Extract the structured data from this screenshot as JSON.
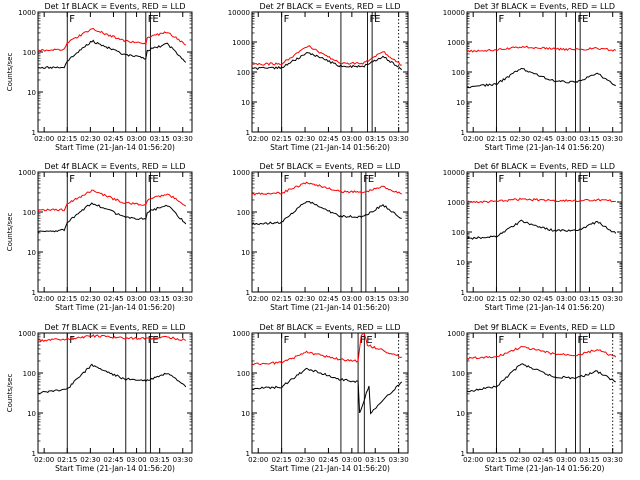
{
  "chart_data": [
    {
      "type": "line",
      "title": "Det 1f BLACK = Events, RED = LLD",
      "xlabel": "Start Time (21-Jan-14 01:56:20)",
      "ylabel": "Counts/sec",
      "yscale": "log",
      "ylim": [
        1,
        1000
      ],
      "x_ticks": [
        "02:00",
        "02:15",
        "02:30",
        "02:45",
        "03:00",
        "03:15",
        "03:30"
      ],
      "y_ticks": [
        "1",
        "10",
        "100",
        "1000"
      ],
      "markers": [
        {
          "time": "02:15",
          "label": "F",
          "style": "solid"
        },
        {
          "time": "02:53",
          "label": "",
          "style": "solid"
        },
        {
          "time": "03:06",
          "label": "F",
          "style": "solid"
        },
        {
          "time": "03:09",
          "label": "E",
          "style": "solid"
        }
      ],
      "series": [
        {
          "name": "Events",
          "color": "#000000",
          "x": [
            "01:56",
            "02:13",
            "02:15",
            "02:31",
            "02:52",
            "03:06",
            "03:07",
            "03:20",
            "03:32"
          ],
          "y": [
            40,
            42,
            60,
            190,
            85,
            70,
            110,
            160,
            55
          ]
        },
        {
          "name": "LLD",
          "color": "#ff0000",
          "x": [
            "01:56",
            "02:13",
            "02:15",
            "02:31",
            "02:52",
            "03:06",
            "03:07",
            "03:20",
            "03:32"
          ],
          "y": [
            110,
            115,
            170,
            380,
            190,
            160,
            230,
            320,
            150
          ]
        }
      ]
    },
    {
      "type": "line",
      "title": "Det 2f BLACK = Events, RED = LLD",
      "xlabel": "Start Time (21-Jan-14 01:56:20)",
      "ylabel": "",
      "yscale": "log",
      "ylim": [
        1,
        10000
      ],
      "x_ticks": [
        "02:00",
        "02:15",
        "02:30",
        "02:45",
        "03:00",
        "03:15",
        "03:30"
      ],
      "y_ticks": [
        "1",
        "10",
        "100",
        "1000",
        "10000"
      ],
      "markers": [
        {
          "time": "02:15",
          "label": "F",
          "style": "solid"
        },
        {
          "time": "02:53",
          "label": "",
          "style": "solid"
        },
        {
          "time": "03:10",
          "label": "F",
          "style": "solid"
        },
        {
          "time": "03:13",
          "label": "E",
          "style": "solid"
        },
        {
          "time": "03:30",
          "label": "",
          "style": "dotted"
        }
      ],
      "series": [
        {
          "name": "Events",
          "color": "#000000",
          "x": [
            "01:56",
            "02:15",
            "02:32",
            "02:52",
            "03:07",
            "03:20",
            "03:32"
          ],
          "y": [
            130,
            140,
            450,
            160,
            150,
            330,
            120
          ]
        },
        {
          "name": "LLD",
          "color": "#ff0000",
          "x": [
            "01:56",
            "02:15",
            "02:32",
            "02:52",
            "03:07",
            "03:20",
            "03:32"
          ],
          "y": [
            180,
            190,
            750,
            200,
            190,
            480,
            170
          ]
        }
      ]
    },
    {
      "type": "line",
      "title": "Det 3f BLACK = Events, RED = LLD",
      "xlabel": "Start Time (21-Jan-14 01:56:20)",
      "ylabel": "",
      "yscale": "log",
      "ylim": [
        1,
        10000
      ],
      "x_ticks": [
        "02:00",
        "02:15",
        "02:30",
        "02:45",
        "03:00",
        "03:15",
        "03:30"
      ],
      "y_ticks": [
        "1",
        "10",
        "100",
        "1000",
        "10000"
      ],
      "markers": [
        {
          "time": "02:15",
          "label": "F",
          "style": "solid"
        },
        {
          "time": "02:53",
          "label": "",
          "style": "solid"
        },
        {
          "time": "03:06",
          "label": "F",
          "style": "solid"
        },
        {
          "time": "03:09",
          "label": "E",
          "style": "solid"
        }
      ],
      "series": [
        {
          "name": "Events",
          "color": "#000000",
          "x": [
            "01:56",
            "02:15",
            "02:31",
            "02:52",
            "03:07",
            "03:20",
            "03:32"
          ],
          "y": [
            30,
            40,
            130,
            50,
            45,
            90,
            35
          ]
        },
        {
          "name": "LLD",
          "color": "#ff0000",
          "x": [
            "01:56",
            "02:15",
            "02:31",
            "02:52",
            "03:07",
            "03:20",
            "03:32"
          ],
          "y": [
            500,
            540,
            700,
            600,
            550,
            620,
            520
          ]
        }
      ]
    },
    {
      "type": "line",
      "title": "Det 4f BLACK = Events, RED = LLD",
      "xlabel": "Start Time (21-Jan-14 01:56:20)",
      "ylabel": "Counts/sec",
      "yscale": "log",
      "ylim": [
        1,
        1000
      ],
      "x_ticks": [
        "02:00",
        "02:15",
        "02:30",
        "02:45",
        "03:00",
        "03:15",
        "03:30"
      ],
      "y_ticks": [
        "1",
        "10",
        "100",
        "1000"
      ],
      "markers": [
        {
          "time": "02:15",
          "label": "F",
          "style": "solid"
        },
        {
          "time": "02:53",
          "label": "",
          "style": "solid"
        },
        {
          "time": "03:06",
          "label": "F",
          "style": "solid"
        },
        {
          "time": "03:09",
          "label": "E",
          "style": "solid"
        }
      ],
      "series": [
        {
          "name": "Events",
          "color": "#000000",
          "x": [
            "01:56",
            "02:13",
            "02:15",
            "02:31",
            "02:52",
            "03:06",
            "03:07",
            "03:20",
            "03:32"
          ],
          "y": [
            32,
            35,
            55,
            170,
            75,
            65,
            100,
            150,
            50
          ]
        },
        {
          "name": "LLD",
          "color": "#ff0000",
          "x": [
            "01:56",
            "02:13",
            "02:15",
            "02:31",
            "02:52",
            "03:06",
            "03:07",
            "03:20",
            "03:32"
          ],
          "y": [
            110,
            115,
            160,
            340,
            170,
            150,
            200,
            290,
            140
          ]
        }
      ]
    },
    {
      "type": "line",
      "title": "Det 5f BLACK = Events, RED = LLD",
      "xlabel": "Start Time (21-Jan-14 01:56:20)",
      "ylabel": "",
      "yscale": "log",
      "ylim": [
        1,
        1000
      ],
      "x_ticks": [
        "02:00",
        "02:15",
        "02:30",
        "02:45",
        "03:00",
        "03:15",
        "03:30"
      ],
      "y_ticks": [
        "1",
        "10",
        "100",
        "1000"
      ],
      "markers": [
        {
          "time": "02:15",
          "label": "F",
          "style": "solid"
        },
        {
          "time": "02:53",
          "label": "",
          "style": "solid"
        },
        {
          "time": "03:06",
          "label": "F",
          "style": "solid"
        },
        {
          "time": "03:09",
          "label": "E",
          "style": "solid"
        }
      ],
      "series": [
        {
          "name": "Events",
          "color": "#000000",
          "x": [
            "01:56",
            "02:15",
            "02:31",
            "02:52",
            "03:07",
            "03:20",
            "03:32"
          ],
          "y": [
            50,
            55,
            190,
            80,
            75,
            150,
            70
          ]
        },
        {
          "name": "LLD",
          "color": "#ff0000",
          "x": [
            "01:56",
            "02:15",
            "02:31",
            "02:52",
            "03:07",
            "03:20",
            "03:32"
          ],
          "y": [
            280,
            300,
            550,
            330,
            310,
            440,
            280
          ]
        }
      ]
    },
    {
      "type": "line",
      "title": "Det 6f BLACK = Events, RED = LLD",
      "xlabel": "Start Time (21-Jan-14 01:56:20)",
      "ylabel": "",
      "yscale": "log",
      "ylim": [
        1,
        10000
      ],
      "x_ticks": [
        "02:00",
        "02:15",
        "02:30",
        "02:45",
        "03:00",
        "03:15",
        "03:30"
      ],
      "y_ticks": [
        "1",
        "10",
        "100",
        "1000",
        "10000"
      ],
      "markers": [
        {
          "time": "02:15",
          "label": "F",
          "style": "solid"
        },
        {
          "time": "02:53",
          "label": "",
          "style": "solid"
        },
        {
          "time": "03:06",
          "label": "F",
          "style": "solid"
        },
        {
          "time": "03:09",
          "label": "E",
          "style": "solid"
        }
      ],
      "series": [
        {
          "name": "Events",
          "color": "#000000",
          "x": [
            "01:56",
            "02:15",
            "02:31",
            "02:52",
            "03:07",
            "03:20",
            "03:32"
          ],
          "y": [
            60,
            70,
            230,
            110,
            110,
            220,
            90
          ]
        },
        {
          "name": "LLD",
          "color": "#ff0000",
          "x": [
            "01:56",
            "02:15",
            "02:31",
            "02:52",
            "03:07",
            "03:20",
            "03:32"
          ],
          "y": [
            1000,
            1050,
            1250,
            1100,
            1100,
            1200,
            1050
          ]
        }
      ]
    },
    {
      "type": "line",
      "title": "Det 7f BLACK = Events, RED = LLD",
      "xlabel": "Start Time (21-Jan-14 01:56:20)",
      "ylabel": "Counts/sec",
      "yscale": "log",
      "ylim": [
        1,
        1000
      ],
      "x_ticks": [
        "02:00",
        "02:15",
        "02:30",
        "02:45",
        "03:00",
        "03:15",
        "03:30"
      ],
      "y_ticks": [
        "1",
        "10",
        "100",
        "1000"
      ],
      "markers": [
        {
          "time": "02:15",
          "label": "F",
          "style": "solid"
        },
        {
          "time": "02:53",
          "label": "",
          "style": "solid"
        },
        {
          "time": "03:06",
          "label": "F",
          "style": "solid"
        },
        {
          "time": "03:09",
          "label": "E",
          "style": "solid"
        }
      ],
      "series": [
        {
          "name": "Events",
          "color": "#000000",
          "x": [
            "01:56",
            "02:15",
            "02:31",
            "02:52",
            "03:07",
            "03:20",
            "03:32"
          ],
          "y": [
            32,
            40,
            160,
            70,
            65,
            100,
            45
          ]
        },
        {
          "name": "LLD",
          "color": "#ff0000",
          "x": [
            "01:56",
            "02:15",
            "02:31",
            "02:52",
            "03:07",
            "03:20",
            "03:32"
          ],
          "y": [
            650,
            700,
            850,
            750,
            720,
            800,
            650
          ]
        }
      ]
    },
    {
      "type": "line",
      "title": "Det 8f BLACK = Events, RED = LLD",
      "xlabel": "Start Time (21-Jan-14 01:56:20)",
      "ylabel": "",
      "yscale": "log",
      "ylim": [
        1,
        1000
      ],
      "x_ticks": [
        "02:00",
        "02:15",
        "02:30",
        "02:45",
        "03:00",
        "03:15",
        "03:30"
      ],
      "y_ticks": [
        "1",
        "10",
        "100",
        "1000"
      ],
      "markers": [
        {
          "time": "02:15",
          "label": "F",
          "style": "solid"
        },
        {
          "time": "02:53",
          "label": "",
          "style": "solid"
        },
        {
          "time": "03:04",
          "label": "F",
          "style": "solid"
        },
        {
          "time": "03:08",
          "label": "E",
          "style": "solid"
        },
        {
          "time": "03:30",
          "label": "",
          "style": "dotted"
        }
      ],
      "series": [
        {
          "name": "Events",
          "color": "#000000",
          "x": [
            "01:56",
            "02:15",
            "02:31",
            "02:52",
            "03:04",
            "03:05",
            "03:11",
            "03:12",
            "03:32"
          ],
          "y": [
            40,
            45,
            130,
            70,
            60,
            10,
            50,
            10,
            60
          ]
        },
        {
          "name": "LLD",
          "color": "#ff0000",
          "x": [
            "01:56",
            "02:15",
            "02:31",
            "02:52",
            "03:04",
            "03:06",
            "03:08",
            "03:10",
            "03:32"
          ],
          "y": [
            170,
            180,
            330,
            220,
            200,
            900,
            950,
            500,
            250
          ]
        }
      ]
    },
    {
      "type": "line",
      "title": "Det 9f BLACK = Events, RED = LLD",
      "xlabel": "Start Time (21-Jan-14 01:56:20)",
      "ylabel": "",
      "yscale": "log",
      "ylim": [
        1,
        1000
      ],
      "x_ticks": [
        "02:00",
        "02:15",
        "02:30",
        "02:45",
        "03:00",
        "03:15",
        "03:30"
      ],
      "y_ticks": [
        "1",
        "10",
        "100",
        "1000"
      ],
      "markers": [
        {
          "time": "02:15",
          "label": "F",
          "style": "solid"
        },
        {
          "time": "02:53",
          "label": "",
          "style": "solid"
        },
        {
          "time": "03:06",
          "label": "F",
          "style": "solid"
        },
        {
          "time": "03:09",
          "label": "E",
          "style": "solid"
        },
        {
          "time": "03:30",
          "label": "",
          "style": "dotted"
        }
      ],
      "series": [
        {
          "name": "Events",
          "color": "#000000",
          "x": [
            "01:56",
            "02:15",
            "02:31",
            "02:52",
            "03:07",
            "03:20",
            "03:32"
          ],
          "y": [
            35,
            45,
            170,
            80,
            75,
            110,
            60
          ]
        },
        {
          "name": "LLD",
          "color": "#ff0000",
          "x": [
            "01:56",
            "02:15",
            "02:31",
            "02:52",
            "03:07",
            "03:20",
            "03:32"
          ],
          "y": [
            230,
            250,
            450,
            300,
            280,
            380,
            250
          ]
        }
      ]
    }
  ]
}
